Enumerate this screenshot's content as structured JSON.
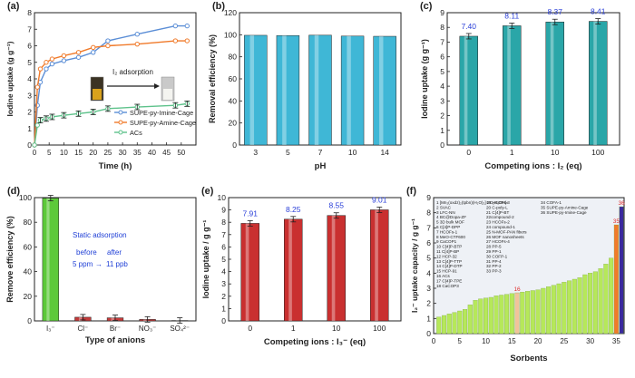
{
  "chart_data": [
    {
      "panel": "(a)",
      "type": "line",
      "xlabel": "Time (h)",
      "ylabel": "Iodine uptake (g g⁻¹)",
      "xlim": [
        0,
        55
      ],
      "ylim": [
        0,
        8
      ],
      "xticks": [
        0,
        5,
        10,
        15,
        20,
        25,
        30,
        35,
        40,
        45,
        50
      ],
      "yticks": [
        0,
        1,
        2,
        3,
        4,
        5,
        6,
        7,
        8
      ],
      "annotation": "I₂ adsorption",
      "series": [
        {
          "name": "SUPE-py-Imine-Cage",
          "color": "#5b8ed6",
          "x": [
            0,
            1,
            2,
            4,
            6,
            10,
            15,
            20,
            25,
            35,
            48,
            52
          ],
          "y": [
            0,
            2.4,
            3.8,
            4.6,
            4.9,
            5.1,
            5.3,
            5.6,
            6.3,
            6.7,
            7.2,
            7.2
          ]
        },
        {
          "name": "SUPE-py-Amine-Cage",
          "color": "#f07a2a",
          "x": [
            0,
            1,
            2,
            4,
            6,
            10,
            15,
            20,
            25,
            35,
            48,
            52
          ],
          "y": [
            0,
            3.5,
            4.6,
            5.0,
            5.2,
            5.4,
            5.6,
            5.9,
            6.0,
            6.1,
            6.3,
            6.3
          ]
        },
        {
          "name": "ACs",
          "color": "#5ec28b",
          "x": [
            0,
            1,
            2,
            4,
            6,
            10,
            15,
            20,
            25,
            35,
            48,
            52
          ],
          "y": [
            0,
            1.2,
            1.5,
            1.6,
            1.7,
            1.8,
            1.9,
            2.0,
            2.2,
            2.3,
            2.4,
            2.5
          ]
        }
      ]
    },
    {
      "panel": "(b)",
      "type": "bar",
      "xlabel": "pH",
      "ylabel": "Removal efficiency (%)",
      "categories": [
        "3",
        "5",
        "7",
        "10",
        "14"
      ],
      "values": [
        99.5,
        99.3,
        99.6,
        98.8,
        98.6
      ],
      "ylim": [
        0,
        120
      ],
      "yticks": [
        0,
        20,
        40,
        60,
        80,
        100,
        120
      ]
    },
    {
      "panel": "(c)",
      "type": "bar",
      "xlabel": "Competing ions : I₂ (eq)",
      "ylabel": "Iodine uptake (g g⁻¹)",
      "categories": [
        "0",
        "1",
        "10",
        "100"
      ],
      "values": [
        7.4,
        8.11,
        8.37,
        8.41
      ],
      "labels": [
        "7.40",
        "8.11",
        "8.37",
        "8.41"
      ],
      "ylim": [
        0,
        9
      ],
      "yticks": [
        0,
        1,
        2,
        3,
        4,
        5,
        6,
        7,
        8,
        9
      ]
    },
    {
      "panel": "(d)",
      "type": "bar",
      "xlabel": "Type of anions",
      "ylabel": "Remove efficiency (%)",
      "categories": [
        "I₃⁻",
        "Cl⁻",
        "Br⁻",
        "NO₃⁻",
        "SO₄²⁻"
      ],
      "values": [
        99.6,
        3.0,
        2.5,
        1.2,
        0.3
      ],
      "colors": [
        "#5dc93a",
        "#c43a3a",
        "#c43a3a",
        "#c43a3a",
        "#c43a3a"
      ],
      "ylim": [
        0,
        100
      ],
      "yticks": [
        0,
        20,
        40,
        60,
        80,
        100
      ],
      "annotations": [
        "Static adsorption",
        "before",
        "after",
        "5 ppm",
        "→",
        "11 ppb"
      ]
    },
    {
      "panel": "(e)",
      "type": "bar",
      "xlabel": "Competing ions : I₃⁻ (eq)",
      "ylabel": "Iodine uptake / g g⁻¹",
      "categories": [
        "0",
        "1",
        "10",
        "100"
      ],
      "values": [
        7.91,
        8.25,
        8.55,
        9.01
      ],
      "labels": [
        "7.91",
        "8.25",
        "8.55",
        "9.01"
      ],
      "ylim": [
        0,
        10
      ],
      "yticks": [
        0,
        1,
        2,
        3,
        4,
        5,
        6,
        7,
        8,
        9,
        10
      ]
    },
    {
      "panel": "(f)",
      "type": "bar",
      "xlabel": "Sorbents",
      "ylabel": "I₂⁻ uptake capacity / g g⁻¹",
      "x": [
        1,
        2,
        3,
        4,
        5,
        6,
        7,
        8,
        9,
        10,
        11,
        12,
        13,
        14,
        15,
        16,
        17,
        18,
        19,
        20,
        21,
        22,
        23,
        24,
        25,
        26,
        27,
        28,
        29,
        30,
        31,
        32,
        33,
        34,
        35,
        36
      ],
      "values": [
        1.1,
        1.2,
        1.3,
        1.4,
        1.5,
        1.6,
        1.9,
        2.2,
        2.3,
        2.35,
        2.4,
        2.5,
        2.55,
        2.6,
        2.65,
        2.7,
        2.75,
        2.8,
        2.85,
        2.9,
        3.0,
        3.1,
        3.2,
        3.3,
        3.4,
        3.5,
        3.6,
        3.7,
        3.9,
        4.0,
        4.1,
        4.3,
        4.6,
        5.0,
        7.2,
        8.4
      ],
      "highlight_labels": {
        "16": "16",
        "35": "35",
        "36": "36"
      },
      "ylim": [
        0,
        9
      ],
      "xticks": [
        0,
        5,
        10,
        15,
        20,
        25,
        30,
        35
      ],
      "yticks": [
        0,
        1,
        2,
        3,
        4,
        5,
        6,
        7,
        8,
        9
      ],
      "legend_col1": [
        "1 [Mn₂(oxdz)₂(tpbn)(H₂O)₂]·2C₂H₅OH)ₙ",
        "2 SVAC",
        "3 LFC-NN",
        "4 BC@Dopa-ZF",
        "5 3D bulk MOF",
        "6 C[4]P-DPP",
        "7 HCOFs-1",
        "8 MeO-CTF600",
        "9 CaCOP1",
        "10 C[4]P-BTP",
        "11 C[4]P-BP",
        "12 HCP-32",
        "13 C[4]P-TTP",
        "14 C[4]P-DTP",
        "15 HCP-91",
        "16 ACs",
        "17 C[4]P-TPE",
        "18 CaCOP3"
      ],
      "legend_col2": [
        "19 HCOFs-3",
        "20 C-poly-L",
        "21 C[4]P-BT",
        "22compound-2",
        "23 HCOFs-2",
        "24 compound-1",
        "25 N-MOF-PAN fibers",
        "26 MOF nanosheets",
        "27 HCOFs-4",
        "28 PP-5",
        "29 PP-1",
        "30 COFP-1",
        "31 PP-4",
        "32 PP-2",
        "33 PP-3"
      ],
      "legend_col3": [
        "34 COFA-1",
        "35 SUPE-py-Amine-Cage",
        "36 SUPE-py-Imine-Cage"
      ]
    }
  ]
}
